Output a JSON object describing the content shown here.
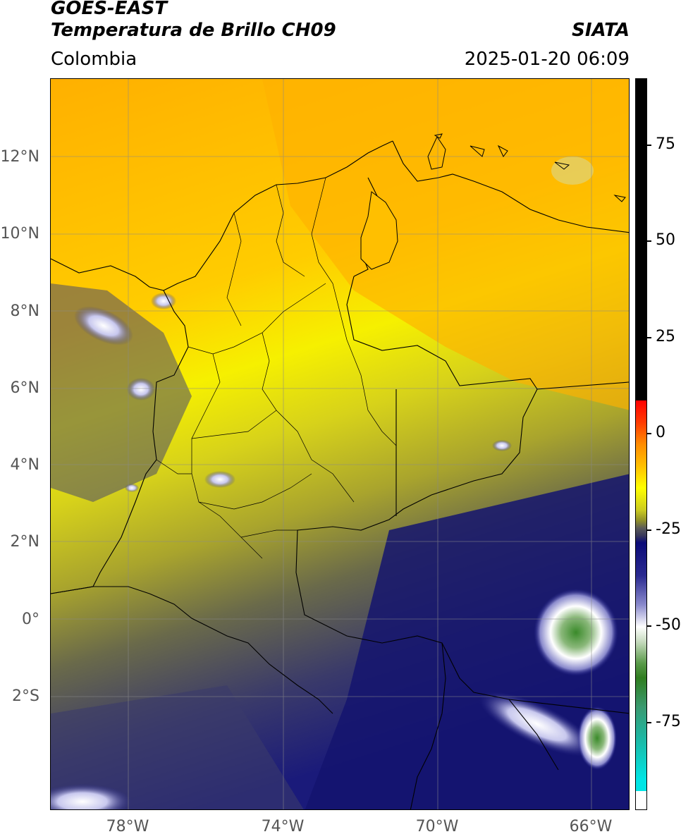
{
  "header": {
    "satellite": "GOES-EAST",
    "product": "Temperatura de Brillo CH09",
    "organization": "SIATA",
    "region": "Colombia",
    "datetime": "2025-01-20 06:09"
  },
  "map": {
    "lat_labels": [
      "12°N",
      "10°N",
      "8°N",
      "6°N",
      "4°N",
      "2°N",
      "0°",
      "2°S"
    ],
    "lon_labels": [
      "78°W",
      "74°W",
      "70°W",
      "66°W"
    ]
  },
  "colorbar": {
    "ticks": [
      "75",
      "50",
      "25",
      "0",
      "-25",
      "-50",
      "-75"
    ],
    "colors": {
      "black": "#000000",
      "red": "#ff0000",
      "orange": "#ffa500",
      "yellow": "#ffff00",
      "olive": "#8e8e2a",
      "gray": "#5a5a5a",
      "navy": "#0b0b78",
      "white": "#ffffff",
      "green": "#2f7d1f",
      "teal": "#1fb5a0",
      "cyan": "#00e5e5"
    }
  }
}
